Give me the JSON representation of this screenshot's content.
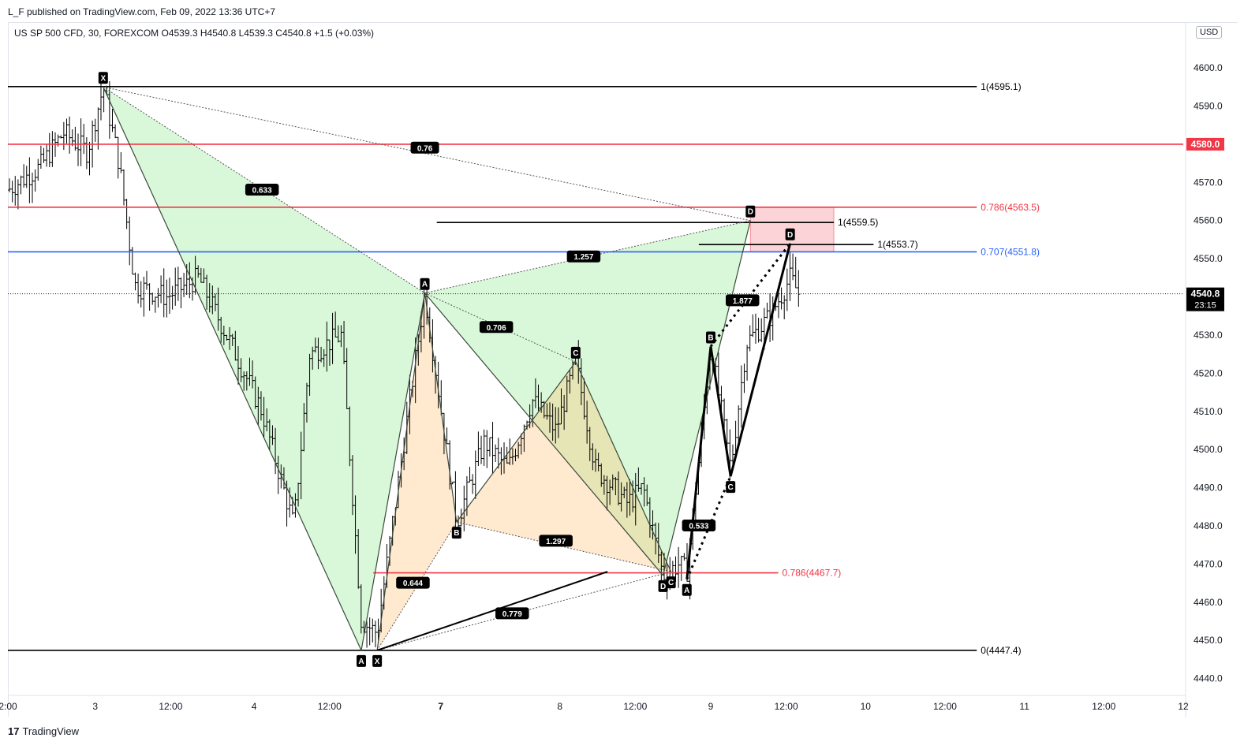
{
  "header": {
    "publish_line": "L_F published on TradingView.com, Feb 09, 2022 13:36 UTC+7",
    "symbol_line": "US SP 500 CFD, 30, FOREXCOM  O4539.3  H4540.8  L4539.3  C4540.8  +1.5 (+0.03%)",
    "currency": "USD"
  },
  "footer": {
    "logo": "TradingView"
  },
  "price_tag": {
    "value": "4540.8",
    "countdown": "23:15",
    "color": "#000000"
  },
  "red_tag": {
    "value": "4580.0",
    "color": "#f23645"
  },
  "chart_data": {
    "type": "candlestick",
    "y_axis": {
      "range": [
        4436,
        4612
      ],
      "ticks": [
        "4440.0",
        "4450.0",
        "4460.0",
        "4470.0",
        "4480.0",
        "4490.0",
        "4500.0",
        "4510.0",
        "4520.0",
        "4530.0",
        "4540.0",
        "4550.0",
        "4560.0",
        "4570.0",
        "4590.0",
        "4600.0"
      ],
      "tick_values": [
        4440,
        4450,
        4460,
        4470,
        4480,
        4490,
        4500,
        4510,
        4520,
        4530,
        4540,
        4550,
        4560,
        4570,
        4590,
        4600
      ]
    },
    "x_axis": {
      "range": [
        0,
        148
      ],
      "labels": [
        {
          "t": 0,
          "label": "2:00"
        },
        {
          "t": 11,
          "label": "3"
        },
        {
          "t": 20.5,
          "label": "12:00"
        },
        {
          "t": 31,
          "label": "4"
        },
        {
          "t": 40.5,
          "label": "12:00"
        },
        {
          "t": 54.5,
          "label": "7"
        },
        {
          "t": 69.5,
          "label": "8"
        },
        {
          "t": 79,
          "label": "12:00"
        },
        {
          "t": 88.5,
          "label": "9"
        },
        {
          "t": 98,
          "label": "12:00"
        },
        {
          "t": 108,
          "label": "10"
        },
        {
          "t": 118,
          "label": "12:00"
        },
        {
          "t": 128,
          "label": "11"
        },
        {
          "t": 138,
          "label": "12:00"
        },
        {
          "t": 148,
          "label": "12"
        }
      ]
    },
    "levels": [
      {
        "price": 4595.1,
        "label": "1(4595.1)",
        "color": "#000000",
        "x0": 0,
        "x1": 122
      },
      {
        "price": 4580.0,
        "label": "",
        "color": "#f23645",
        "x0": 0,
        "x1": 148
      },
      {
        "price": 4563.5,
        "label": "0.786(4563.5)",
        "color": "#f23645",
        "x0": 0,
        "x1": 122
      },
      {
        "price": 4559.5,
        "label": "1(4559.5)",
        "color": "#000000",
        "x0": 54,
        "x1": 104
      },
      {
        "price": 4553.7,
        "label": "1(4553.7)",
        "color": "#000000",
        "x0": 87,
        "x1": 109
      },
      {
        "price": 4551.8,
        "label": "0.707(4551.8)",
        "color": "#2962ff",
        "x0": 0,
        "x1": 122
      },
      {
        "price": 4467.7,
        "label": "0.786(4467.7)",
        "color": "#f23645",
        "x0": 46,
        "x1": 97
      },
      {
        "price": 4447.4,
        "label": "0(4447.4)",
        "color": "#000000",
        "x0": 0,
        "x1": 122
      }
    ],
    "current_price": 4540.8,
    "pattern_points": [
      {
        "id": "X1",
        "label": "X",
        "t": 12,
        "p": 4595
      },
      {
        "id": "A1",
        "label": "A",
        "t": 44.5,
        "p": 4447.4
      },
      {
        "id": "B1",
        "label": "A",
        "t": 52.5,
        "p": 4541
      },
      {
        "id": "C1",
        "label": "C",
        "t": 71.5,
        "p": 4523
      },
      {
        "id": "D1",
        "label": "D",
        "t": 82.5,
        "p": 4467
      },
      {
        "id": "DD",
        "label": "D",
        "t": 93.5,
        "p": 4560
      },
      {
        "id": "X2",
        "label": "X",
        "t": 46.5,
        "p": 4447.4
      },
      {
        "id": "B2",
        "label": "B",
        "t": 56.5,
        "p": 4481
      },
      {
        "id": "C2",
        "label": "C",
        "t": 83.5,
        "p": 4468
      },
      {
        "id": "A3",
        "label": "A",
        "t": 85.5,
        "p": 4466
      },
      {
        "id": "B3",
        "label": "B",
        "t": 88.5,
        "p": 4527
      },
      {
        "id": "C3",
        "label": "C",
        "t": 91,
        "p": 4493
      },
      {
        "id": "D3",
        "label": "D",
        "t": 98.5,
        "p": 4554
      }
    ],
    "ratios": [
      {
        "label": "0.76",
        "t": 52.5,
        "p": 4579
      },
      {
        "label": "0.633",
        "t": 32,
        "p": 4568
      },
      {
        "label": "1.257",
        "t": 72.5,
        "p": 4550.5
      },
      {
        "label": "0.706",
        "t": 61.5,
        "p": 4532
      },
      {
        "label": "1.877",
        "t": 92.5,
        "p": 4539
      },
      {
        "label": "1.297",
        "t": 69,
        "p": 4476
      },
      {
        "label": "0.533",
        "t": 87,
        "p": 4480
      },
      {
        "label": "0.644",
        "t": 51,
        "p": 4465
      },
      {
        "label": "0.779",
        "t": 63.5,
        "p": 4457
      }
    ]
  }
}
